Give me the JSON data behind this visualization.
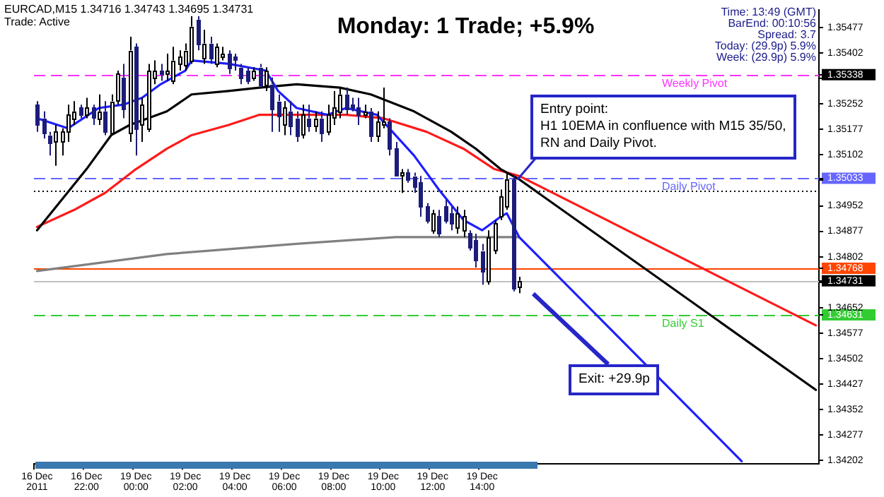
{
  "chart_data": {
    "type": "candlestick",
    "title": "Monday: 1 Trade; +5.9%",
    "marker": "none",
    "colors": [
      "#1c1c7a",
      "#1c1c7a",
      "#1c1c7a",
      "#000000",
      "#000000",
      "#000000",
      "#000000",
      "#1c1c7a",
      "#000000",
      "#1c1c7a",
      "#000000",
      "#1c1c7a",
      "#000000",
      "#000000",
      "#1c1c7a",
      "#000000",
      "#1c1c7a",
      "#000000",
      "#000000",
      "#000000",
      "#1c1c7a",
      "#000000",
      "#000000",
      "#000000",
      "#000000",
      "#000000",
      "#1c1c7a",
      "#000000",
      "#1c1c7a",
      "#000000",
      "#000000",
      "#1c1c7a",
      "#1c1c7a",
      "#1c1c7a",
      "#1c1c7a",
      "#000000",
      "#1c1c7a",
      "#000000",
      "#1c1c7a",
      "#1c1c7a",
      "#000000",
      "#1c1c7a",
      "#1c1c7a",
      "#000000",
      "#1c1c7a",
      "#000000",
      "#1c1c7a",
      "#000000",
      "#000000",
      "#000000",
      "#1c1c7a",
      "#1c1c7a",
      "#1c1c7a",
      "#000000",
      "#1c1c7a",
      "#000000",
      "#000000",
      "#1c1c7a",
      "#1c1c7a",
      "#000000",
      "#1c1c7a",
      "#1c1c7a",
      "#1c1c7a",
      "#1c1c7a",
      "#000000",
      "#1c1c7a",
      "#1c1c7a",
      "#1c1c7a",
      "#000000",
      "#000000",
      "#1c1c7a",
      "#1c1c7a",
      "#1c1c7a",
      "#000000",
      "#000000",
      "#000000",
      "#000000",
      "#1c1c7a",
      "#000000",
      null,
      null,
      null,
      null,
      null,
      null,
      null,
      null,
      null,
      null,
      null,
      null,
      null,
      null,
      null,
      null,
      null,
      null,
      null,
      null,
      null,
      null,
      null,
      null,
      null,
      null,
      null,
      null,
      null,
      null,
      null,
      null,
      null,
      null,
      null,
      null,
      null,
      null,
      null,
      null,
      null,
      null,
      null,
      null,
      null,
      null,
      null,
      null
    ],
    "categories": [
      "16 Dec 2011",
      null,
      null,
      null,
      null,
      null,
      null,
      null,
      "16 Dec 22:00",
      null,
      null,
      null,
      null,
      null,
      null,
      null,
      "19 Dec 00:00",
      null,
      null,
      null,
      null,
      null,
      null,
      null,
      "19 Dec 02:00",
      null,
      null,
      null,
      null,
      null,
      null,
      null,
      "19 Dec 04:00",
      null,
      null,
      null,
      null,
      null,
      null,
      null,
      "19 Dec 06:00",
      null,
      null,
      null,
      null,
      null,
      null,
      null,
      "19 Dec 08:00",
      null,
      null,
      null,
      null,
      null,
      null,
      null,
      "19 Dec 10:00",
      null,
      null,
      null,
      null,
      null,
      null,
      null,
      "19 Dec 12:00",
      null,
      null,
      null,
      null,
      null,
      null,
      null,
      "19 Dec 14:00",
      null,
      null,
      null,
      null,
      null,
      null,
      null,
      null,
      null,
      null,
      null,
      null,
      null,
      null,
      null,
      null,
      null,
      null,
      null,
      null,
      null,
      null,
      null,
      null,
      null,
      null,
      null,
      null,
      null,
      null,
      null,
      null,
      null,
      null,
      null,
      null,
      null,
      null,
      null,
      null,
      null,
      null,
      null,
      null,
      null,
      null,
      null,
      null,
      null,
      null,
      null,
      null,
      null,
      null
    ],
    "ohlc": [
      [
        1.3525,
        1.3526,
        1.3517,
        1.3519
      ],
      [
        1.3521,
        1.3523,
        1.3515,
        1.3517
      ],
      [
        1.3516,
        1.3517,
        1.351,
        1.3514
      ],
      [
        1.3514,
        1.3519,
        1.3507,
        1.3517
      ],
      [
        1.3514,
        1.3518,
        1.351,
        1.3517
      ],
      [
        1.3517,
        1.3525,
        1.3514,
        1.3522
      ],
      [
        1.3521,
        1.3526,
        1.3519,
        1.3523
      ],
      [
        1.3524,
        1.3525,
        1.3521,
        1.3522
      ],
      [
        1.3522,
        1.3527,
        1.3521,
        1.3524
      ],
      [
        1.3524,
        1.3525,
        1.3519,
        1.3521
      ],
      [
        1.3521,
        1.3528,
        1.3519,
        1.3523
      ],
      [
        1.3523,
        1.3526,
        1.3516,
        1.3517
      ],
      [
        1.3517,
        1.3528,
        1.3516,
        1.3526
      ],
      [
        1.3526,
        1.3535,
        1.3525,
        1.3534
      ],
      [
        1.3533,
        1.3537,
        1.3521,
        1.3524
      ],
      [
        1.3517,
        1.3545,
        1.3514,
        1.3541
      ],
      [
        1.3542,
        1.3543,
        1.351,
        1.3518
      ],
      [
        1.3519,
        1.3527,
        1.3514,
        1.3525
      ],
      [
        1.3518,
        1.3537,
        1.3517,
        1.3535
      ],
      [
        1.3533,
        1.3538,
        1.3531,
        1.3535
      ],
      [
        1.3535,
        1.3537,
        1.3532,
        1.3534
      ],
      [
        1.3534,
        1.354,
        1.3532,
        1.3535
      ],
      [
        1.3532,
        1.3542,
        1.3531,
        1.3538
      ],
      [
        1.3537,
        1.3541,
        1.3535,
        1.3539
      ],
      [
        1.3537,
        1.3543,
        1.3535,
        1.3541
      ],
      [
        1.3538,
        1.3551,
        1.3537,
        1.3548
      ],
      [
        1.355,
        1.3551,
        1.3541,
        1.3543
      ],
      [
        1.3539,
        1.3547,
        1.3537,
        1.3543
      ],
      [
        1.3543,
        1.3545,
        1.3537,
        1.3539
      ],
      [
        1.3537,
        1.3543,
        1.3536,
        1.3542
      ],
      [
        1.3539,
        1.3542,
        1.3538,
        1.354
      ],
      [
        1.354,
        1.3541,
        1.3534,
        1.3536
      ],
      [
        1.3539,
        1.354,
        1.3535,
        1.3538
      ],
      [
        1.3536,
        1.3537,
        1.3531,
        1.3533
      ],
      [
        1.3535,
        1.3536,
        1.3531,
        1.3532
      ],
      [
        1.3533,
        1.3536,
        1.3532,
        1.3535
      ],
      [
        1.3536,
        1.3537,
        1.353,
        1.3531
      ],
      [
        1.3531,
        1.3536,
        1.3529,
        1.3535
      ],
      [
        1.3531,
        1.3533,
        1.3517,
        1.3524
      ],
      [
        1.3526,
        1.3528,
        1.3517,
        1.3522
      ],
      [
        1.3519,
        1.3526,
        1.3516,
        1.3524
      ],
      [
        1.3523,
        1.3526,
        1.3516,
        1.3519
      ],
      [
        1.3521,
        1.3523,
        1.3514,
        1.3516
      ],
      [
        1.3516,
        1.3525,
        1.3515,
        1.3522
      ],
      [
        1.3521,
        1.3525,
        1.3517,
        1.3519
      ],
      [
        1.3519,
        1.3523,
        1.3517,
        1.3521
      ],
      [
        1.3521,
        1.3523,
        1.3514,
        1.3517
      ],
      [
        1.3517,
        1.3525,
        1.3516,
        1.3522
      ],
      [
        1.3521,
        1.3529,
        1.3519,
        1.3524
      ],
      [
        1.3523,
        1.353,
        1.3521,
        1.3528
      ],
      [
        1.3528,
        1.353,
        1.3522,
        1.3524
      ],
      [
        1.3525,
        1.3527,
        1.3523,
        1.3524
      ],
      [
        1.3524,
        1.3527,
        1.3519,
        1.3522
      ],
      [
        1.3522,
        1.3525,
        1.3521,
        1.3523
      ],
      [
        1.3523,
        1.3524,
        1.3514,
        1.3516
      ],
      [
        1.3516,
        1.3523,
        1.3514,
        1.352
      ],
      [
        1.3519,
        1.353,
        1.3518,
        1.352
      ],
      [
        1.352,
        1.3521,
        1.351,
        1.3512
      ],
      [
        1.3512,
        1.3514,
        1.3504,
        1.3504
      ],
      [
        1.3504,
        1.3506,
        1.3499,
        1.3505
      ],
      [
        1.3505,
        1.3506,
        1.3502,
        1.3503
      ],
      [
        1.3504,
        1.3505,
        1.3499,
        1.3501
      ],
      [
        1.3502,
        1.3504,
        1.3492,
        1.3495
      ],
      [
        1.3495,
        1.3496,
        1.349,
        1.3491
      ],
      [
        1.3488,
        1.3494,
        1.3487,
        1.3493
      ],
      [
        1.3492,
        1.3494,
        1.3486,
        1.3487
      ],
      [
        1.3495,
        1.3497,
        1.349,
        1.3491
      ],
      [
        1.3493,
        1.3495,
        1.3488,
        1.349
      ],
      [
        1.3489,
        1.3495,
        1.3487,
        1.3493
      ],
      [
        1.3488,
        1.3494,
        1.3486,
        1.3492
      ],
      [
        1.3487,
        1.3488,
        1.3482,
        1.3483
      ],
      [
        1.3485,
        1.3487,
        1.3477,
        1.3479
      ],
      [
        1.3482,
        1.3484,
        1.3472,
        1.3476
      ],
      [
        1.3473,
        1.3488,
        1.3472,
        1.3486
      ],
      [
        1.3482,
        1.3491,
        1.3481,
        1.349
      ],
      [
        1.3492,
        1.35,
        1.3491,
        1.3498
      ],
      [
        1.3495,
        1.3505,
        1.3494,
        1.3503
      ],
      [
        1.3503,
        1.3504,
        1.347,
        1.3471
      ],
      [
        1.34716,
        1.34743,
        1.34695,
        1.34731
      ],
      null,
      null,
      null,
      null,
      null,
      null,
      null,
      null,
      null,
      null,
      null,
      null,
      null,
      null,
      null,
      null,
      null,
      null,
      null,
      null,
      null,
      null,
      null,
      null,
      null,
      null,
      null,
      null,
      null,
      null,
      null,
      null,
      null,
      null,
      null,
      null,
      null,
      null,
      null,
      null,
      null,
      null,
      null,
      null,
      null,
      null,
      null,
      null
    ],
    "series": [
      {
        "type": "line",
        "color": "#1f1fff",
        "values": [
          1.3521,
          null,
          null,
          null,
          null,
          1.3518,
          null,
          null,
          null,
          null,
          1.3524,
          null,
          null,
          null,
          1.3525,
          null,
          null,
          1.3527,
          null,
          null,
          1.3531,
          null,
          null,
          null,
          1.3535,
          1.3538,
          null,
          null,
          null,
          null,
          null,
          1.3537,
          null,
          null,
          null,
          null,
          null,
          1.3535,
          null,
          1.3529,
          null,
          null,
          1.3524,
          null,
          null,
          null,
          null,
          1.3522,
          null,
          null,
          1.3524,
          null,
          null,
          null,
          null,
          1.3522,
          null,
          1.3518,
          null,
          null,
          null,
          1.351,
          null,
          null,
          null,
          1.35,
          null,
          null,
          null,
          1.3491,
          null,
          null,
          1.3488,
          null,
          null,
          1.3492,
          1.3493,
          null,
          1.3486,
          null,
          null,
          null,
          null,
          null,
          null,
          null,
          null,
          null,
          null,
          null,
          null,
          null,
          null,
          null,
          null,
          null,
          null,
          null,
          null,
          null,
          null,
          null,
          null,
          null,
          null,
          null,
          null,
          null,
          null,
          null,
          null,
          null,
          null,
          null,
          1.342,
          null,
          null,
          null,
          null,
          null,
          null,
          null,
          null,
          null,
          null,
          null,
          null
        ]
      },
      {
        "type": "line",
        "color": "#000000",
        "values": [
          1.3488,
          null,
          null,
          null,
          null,
          null,
          null,
          null,
          1.3506,
          null,
          null,
          null,
          1.3516,
          null,
          null,
          1.3519,
          null,
          null,
          null,
          null,
          null,
          1.3523,
          null,
          null,
          null,
          1.3528,
          null,
          null,
          null,
          null,
          null,
          1.3529,
          null,
          null,
          null,
          null,
          1.353,
          null,
          null,
          null,
          null,
          null,
          1.3531,
          null,
          null,
          null,
          null,
          null,
          null,
          1.353,
          null,
          null,
          null,
          null,
          1.3528,
          null,
          null,
          null,
          null,
          null,
          null,
          1.3523,
          null,
          null,
          null,
          null,
          null,
          1.3517,
          null,
          null,
          null,
          1.3512,
          null,
          null,
          null,
          1.3506,
          null,
          null,
          1.3503,
          null,
          null,
          null,
          null,
          null,
          null,
          null,
          null,
          null,
          null,
          null,
          null,
          null,
          null,
          null,
          null,
          null,
          null,
          null,
          null,
          null,
          null,
          null,
          null,
          null,
          null,
          null,
          null,
          null,
          null,
          null,
          null,
          null,
          null,
          null,
          null,
          null,
          null,
          null,
          null,
          null,
          null,
          null,
          null,
          null,
          null,
          null,
          1.3441
        ]
      },
      {
        "type": "line",
        "color": "#ff1a1a",
        "values": [
          1.3489,
          null,
          null,
          null,
          null,
          null,
          1.3494,
          null,
          null,
          null,
          null,
          1.3499,
          null,
          null,
          null,
          null,
          1.3506,
          null,
          null,
          null,
          null,
          1.3512,
          null,
          null,
          null,
          1.3516,
          null,
          null,
          null,
          null,
          null,
          1.3519,
          null,
          null,
          null,
          null,
          1.3522,
          null,
          null,
          null,
          null,
          null,
          1.3522,
          null,
          null,
          null,
          null,
          null,
          null,
          null,
          1.3522,
          null,
          null,
          null,
          null,
          null,
          1.3521,
          null,
          null,
          null,
          null,
          null,
          null,
          1.3517,
          null,
          null,
          null,
          null,
          null,
          1.3512,
          null,
          null,
          null,
          null,
          1.3506,
          null,
          null,
          null,
          1.3504,
          null,
          null,
          null,
          null,
          null,
          null,
          null,
          null,
          null,
          null,
          null,
          null,
          null,
          null,
          null,
          null,
          null,
          null,
          null,
          null,
          null,
          null,
          null,
          null,
          null,
          null,
          null,
          null,
          null,
          null,
          null,
          null,
          null,
          null,
          null,
          null,
          null,
          null,
          null,
          null,
          null,
          null,
          null,
          null,
          null,
          null,
          null,
          1.346
        ]
      },
      {
        "type": "line",
        "color": "#808080",
        "values": [
          1.3476,
          null,
          null,
          null,
          null,
          null,
          null,
          null,
          null,
          null,
          null,
          null,
          null,
          null,
          null,
          null,
          null,
          null,
          null,
          null,
          null,
          1.3481,
          null,
          null,
          null,
          null,
          null,
          null,
          null,
          null,
          null,
          null,
          null,
          null,
          null,
          null,
          null,
          null,
          null,
          null,
          null,
          null,
          1.3484,
          null,
          null,
          null,
          null,
          null,
          null,
          null,
          null,
          null,
          null,
          null,
          null,
          null,
          null,
          null,
          1.3486,
          null,
          null,
          null,
          null,
          null,
          null,
          null,
          null,
          null,
          null,
          null,
          null,
          null,
          null,
          null,
          null,
          null,
          null,
          null,
          1.3486,
          null,
          null,
          null,
          null,
          null,
          null,
          null,
          null,
          null,
          null,
          null,
          null,
          null,
          null,
          null,
          null,
          null,
          null,
          null,
          null,
          null,
          null,
          null,
          null,
          null,
          null,
          null,
          null,
          null,
          null,
          null,
          null,
          null,
          null,
          null,
          null,
          null,
          null,
          null,
          null,
          null,
          null,
          null,
          null,
          null,
          null,
          null,
          null
        ]
      }
    ],
    "ylim": [
      1.34192,
      1.35528
    ],
    "yticks": [
      1.34202,
      1.34277,
      1.34352,
      1.34427,
      1.34502,
      1.34577,
      1.34631,
      1.34652,
      {
        "value": 1.34727,
        "label": null
      },
      1.34731,
      1.34768,
      1.34802,
      1.34877,
      1.34952,
      {
        "value": 1.35027,
        "label": null
      },
      1.35033,
      1.35102,
      1.35177,
      1.35252,
      {
        "value": 1.35327,
        "label": null
      },
      1.35338,
      1.35402,
      1.35477
    ],
    "ref_lines": [
      {
        "axis": "y",
        "value": 1.35338,
        "label": "Weekly Pivot",
        "color": "#ff33ff",
        "line_style": "dashed"
      },
      {
        "axis": "y",
        "value": 1.35033,
        "label": "Daily Pivot",
        "color": "#6666ff",
        "line_style": "dashed"
      },
      {
        "axis": "y",
        "value": 1.34998,
        "color": "#000000",
        "line_style": "dotted"
      },
      {
        "axis": "y",
        "value": 1.34768,
        "color": "#ff4500",
        "line_style": "solid"
      },
      {
        "axis": "y",
        "value": 1.34731,
        "color": "#c0c0c0",
        "line_style": "solid"
      },
      {
        "axis": "y",
        "value": 1.34631,
        "label": "Daily S1",
        "color": "#33cc33",
        "line_style": "dashed"
      }
    ],
    "annotations": [
      "EURCAD,M15 1.34716 1.34743 1.34695 1.34731",
      "Trade: Active",
      "Time: 13:49 (GMT)",
      "BarEnd: 00:10:56",
      "Spread: 3.7",
      "Today: (29.9p) 5.9%",
      "Week: (29.9p) 5.9%",
      "Entry point:\nH1 10EMA in confluence with M15 35/50,\nRN and Daily Pivot.",
      "Exit: +29.9p"
    ]
  }
}
